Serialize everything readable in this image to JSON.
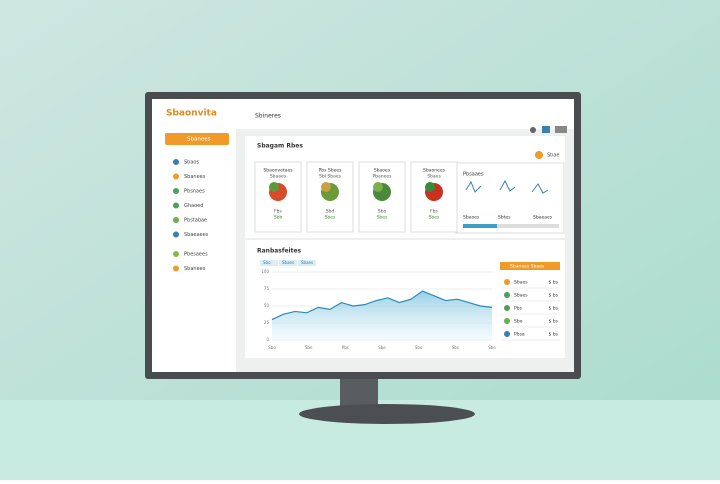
{
  "header": {
    "logo": "Sbaonvita",
    "title": "Sbineres"
  },
  "sidebar": {
    "button": "Sbanees",
    "items": [
      "Sbaos",
      "Sbanees",
      "Pbsnaes",
      "Ghaoed",
      "Pbstabae",
      "Sbaeaees",
      "Pbesaees",
      "Sbanees"
    ]
  },
  "cards": {
    "title": "Sbagam Rbes",
    "action": "Sbae",
    "items": [
      {
        "name": "Sbaonvetaes",
        "sub": "Sbaaes",
        "line1": "Fbs",
        "line2": "Sbb"
      },
      {
        "name": "Pbs Sbees",
        "sub": "Sbl Sbaes",
        "line1": "Sbd",
        "line2": "Sbes"
      },
      {
        "name": "Sbaoes",
        "sub": "Pbanees",
        "line1": "Sbo",
        "line2": "Sbes"
      },
      {
        "name": "Sbaonees",
        "sub": "Sbaes",
        "line1": "Fbs",
        "line2": "Sbes"
      }
    ]
  },
  "summary": {
    "title": "Pbsaaes",
    "tabs": [
      "Sbaoes",
      "Sbtes",
      "Sbaeaes"
    ]
  },
  "trend": {
    "title": "Ranbasfeites",
    "legend": [
      "Sbo",
      "Sbaes",
      "Sbaes"
    ],
    "ylim": [
      0,
      100
    ],
    "yticks": [
      0,
      25,
      50,
      75,
      100
    ],
    "xticks": [
      "Sbo",
      "Sbe",
      "Pbs",
      "Sbe",
      "Sbo",
      "Sbs",
      "Sbe"
    ],
    "values": [
      30,
      38,
      42,
      40,
      48,
      45,
      55,
      50,
      52,
      58,
      62,
      55,
      60,
      72,
      65,
      58,
      60,
      55,
      50,
      48
    ]
  },
  "list": {
    "header": "Sbanees Sbaes",
    "rows": [
      [
        "Sbaes",
        "$ bs"
      ],
      [
        "Sbaes",
        "$ bs"
      ],
      [
        "Pbs",
        "$ bs"
      ],
      [
        "Sbo",
        "$ bs"
      ],
      [
        "Pbsa",
        "$ bs"
      ]
    ]
  }
}
